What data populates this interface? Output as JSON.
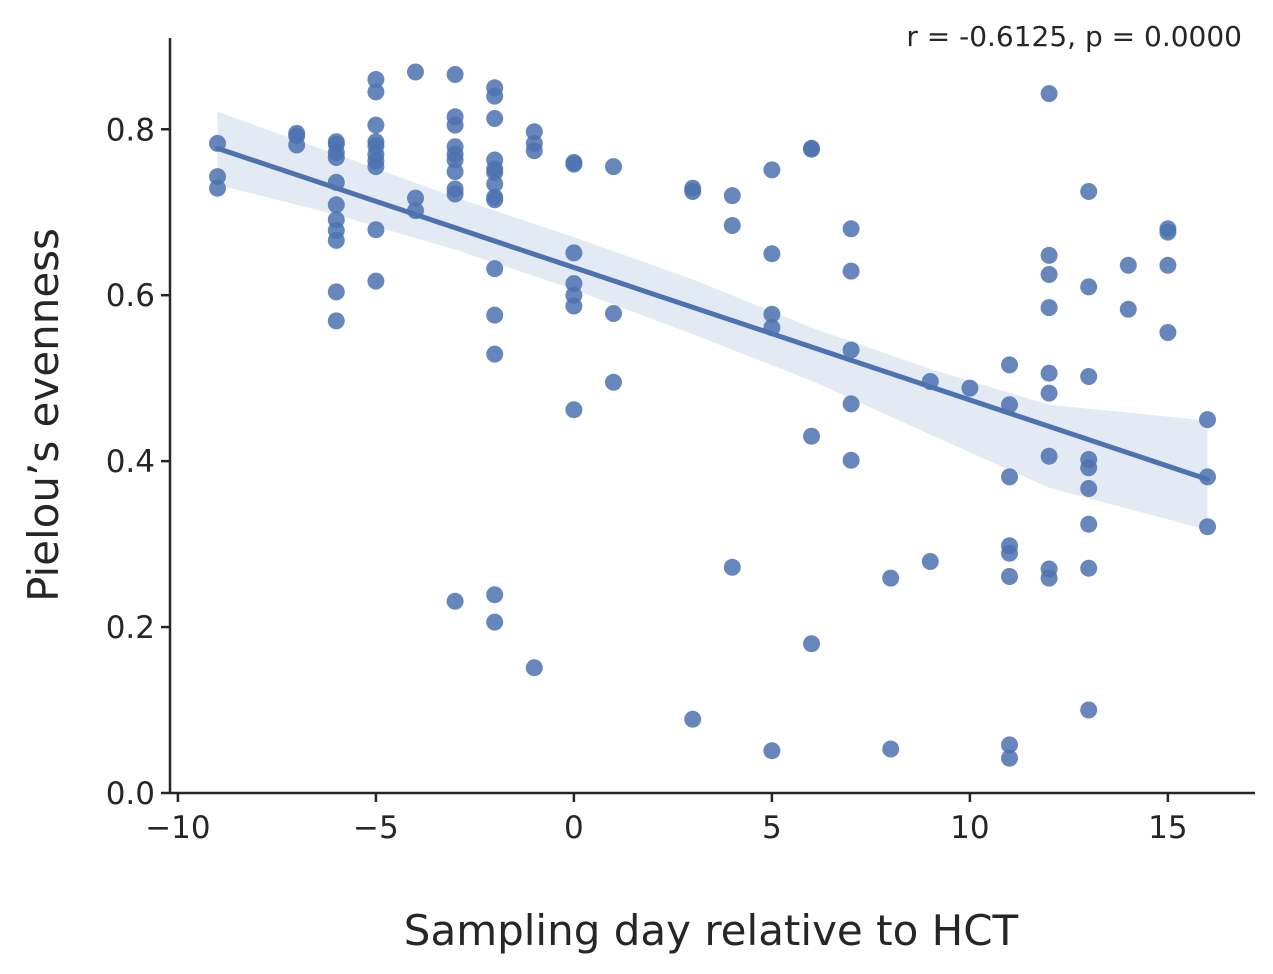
{
  "chart_data": {
    "type": "scatter",
    "xlabel": "Sampling day relative to HCT",
    "ylabel": "Pielou’s evenness",
    "annotation": "r = -0.6125, p = 0.0000",
    "xlim": [
      -10.2,
      17.2
    ],
    "ylim": [
      0.0,
      0.91
    ],
    "xticks": [
      -10,
      -5,
      0,
      5,
      10,
      15
    ],
    "xtick_labels": [
      "−10",
      "−5",
      "0",
      "5",
      "10",
      "15"
    ],
    "yticks": [
      0.0,
      0.2,
      0.4,
      0.6,
      0.8
    ],
    "ytick_labels": [
      "0.0",
      "0.2",
      "0.4",
      "0.6",
      "0.8"
    ],
    "grid": false,
    "colors": {
      "points": "#4c72b0",
      "line": "#4c72b0",
      "band": "#4c72b0",
      "axis": "#262626"
    },
    "regression": {
      "x": [
        -9,
        16
      ],
      "y": [
        0.777,
        0.378
      ]
    },
    "confidence_band": {
      "x": [
        -9,
        -6,
        -3,
        0,
        3,
        6,
        9,
        12,
        16
      ],
      "lower": [
        0.733,
        0.697,
        0.655,
        0.607,
        0.553,
        0.497,
        0.432,
        0.368,
        0.317
      ],
      "upper": [
        0.821,
        0.77,
        0.718,
        0.67,
        0.619,
        0.561,
        0.511,
        0.468,
        0.449
      ]
    },
    "points": [
      {
        "x": -9,
        "y": 0.783
      },
      {
        "x": -9,
        "y": 0.743
      },
      {
        "x": -9,
        "y": 0.729
      },
      {
        "x": -7,
        "y": 0.795
      },
      {
        "x": -7,
        "y": 0.792
      },
      {
        "x": -7,
        "y": 0.781
      },
      {
        "x": -6,
        "y": 0.785
      },
      {
        "x": -6,
        "y": 0.782
      },
      {
        "x": -6,
        "y": 0.772
      },
      {
        "x": -6,
        "y": 0.766
      },
      {
        "x": -6,
        "y": 0.736
      },
      {
        "x": -6,
        "y": 0.709
      },
      {
        "x": -6,
        "y": 0.691
      },
      {
        "x": -6,
        "y": 0.678
      },
      {
        "x": -6,
        "y": 0.666
      },
      {
        "x": -6,
        "y": 0.604
      },
      {
        "x": -6,
        "y": 0.569
      },
      {
        "x": -5,
        "y": 0.86
      },
      {
        "x": -5,
        "y": 0.845
      },
      {
        "x": -5,
        "y": 0.805
      },
      {
        "x": -5,
        "y": 0.785
      },
      {
        "x": -5,
        "y": 0.78
      },
      {
        "x": -5,
        "y": 0.77
      },
      {
        "x": -5,
        "y": 0.762
      },
      {
        "x": -5,
        "y": 0.755
      },
      {
        "x": -5,
        "y": 0.679
      },
      {
        "x": -5,
        "y": 0.617
      },
      {
        "x": -4,
        "y": 0.869
      },
      {
        "x": -4,
        "y": 0.717
      },
      {
        "x": -4,
        "y": 0.702
      },
      {
        "x": -3,
        "y": 0.866
      },
      {
        "x": -3,
        "y": 0.815
      },
      {
        "x": -3,
        "y": 0.805
      },
      {
        "x": -3,
        "y": 0.779
      },
      {
        "x": -3,
        "y": 0.77
      },
      {
        "x": -3,
        "y": 0.763
      },
      {
        "x": -3,
        "y": 0.749
      },
      {
        "x": -3,
        "y": 0.728
      },
      {
        "x": -3,
        "y": 0.722
      },
      {
        "x": -3,
        "y": 0.231
      },
      {
        "x": -2,
        "y": 0.85
      },
      {
        "x": -2,
        "y": 0.84
      },
      {
        "x": -2,
        "y": 0.813
      },
      {
        "x": -2,
        "y": 0.763
      },
      {
        "x": -2,
        "y": 0.752
      },
      {
        "x": -2,
        "y": 0.748
      },
      {
        "x": -2,
        "y": 0.734
      },
      {
        "x": -2,
        "y": 0.718
      },
      {
        "x": -2,
        "y": 0.715
      },
      {
        "x": -2,
        "y": 0.632
      },
      {
        "x": -2,
        "y": 0.576
      },
      {
        "x": -2,
        "y": 0.529
      },
      {
        "x": -2,
        "y": 0.239
      },
      {
        "x": -2,
        "y": 0.206
      },
      {
        "x": -1,
        "y": 0.797
      },
      {
        "x": -1,
        "y": 0.783
      },
      {
        "x": -1,
        "y": 0.774
      },
      {
        "x": -1,
        "y": 0.151
      },
      {
        "x": 0,
        "y": 0.76
      },
      {
        "x": 0,
        "y": 0.758
      },
      {
        "x": 0,
        "y": 0.651
      },
      {
        "x": 0,
        "y": 0.614
      },
      {
        "x": 0,
        "y": 0.6
      },
      {
        "x": 0,
        "y": 0.587
      },
      {
        "x": 0,
        "y": 0.462
      },
      {
        "x": 1,
        "y": 0.755
      },
      {
        "x": 1,
        "y": 0.578
      },
      {
        "x": 1,
        "y": 0.495
      },
      {
        "x": 3,
        "y": 0.729
      },
      {
        "x": 3,
        "y": 0.725
      },
      {
        "x": 3,
        "y": 0.089
      },
      {
        "x": 4,
        "y": 0.72
      },
      {
        "x": 4,
        "y": 0.684
      },
      {
        "x": 4,
        "y": 0.272
      },
      {
        "x": 5,
        "y": 0.751
      },
      {
        "x": 5,
        "y": 0.65
      },
      {
        "x": 5,
        "y": 0.577
      },
      {
        "x": 5,
        "y": 0.561
      },
      {
        "x": 5,
        "y": 0.051
      },
      {
        "x": 6,
        "y": 0.777
      },
      {
        "x": 6,
        "y": 0.776
      },
      {
        "x": 6,
        "y": 0.43
      },
      {
        "x": 6,
        "y": 0.18
      },
      {
        "x": 7,
        "y": 0.68
      },
      {
        "x": 7,
        "y": 0.629
      },
      {
        "x": 7,
        "y": 0.534
      },
      {
        "x": 7,
        "y": 0.469
      },
      {
        "x": 7,
        "y": 0.401
      },
      {
        "x": 8,
        "y": 0.259
      },
      {
        "x": 8,
        "y": 0.053
      },
      {
        "x": 9,
        "y": 0.496
      },
      {
        "x": 9,
        "y": 0.279
      },
      {
        "x": 10,
        "y": 0.488
      },
      {
        "x": 11,
        "y": 0.516
      },
      {
        "x": 11,
        "y": 0.468
      },
      {
        "x": 11,
        "y": 0.381
      },
      {
        "x": 11,
        "y": 0.298
      },
      {
        "x": 11,
        "y": 0.289
      },
      {
        "x": 11,
        "y": 0.261
      },
      {
        "x": 11,
        "y": 0.058
      },
      {
        "x": 11,
        "y": 0.042
      },
      {
        "x": 12,
        "y": 0.843
      },
      {
        "x": 12,
        "y": 0.648
      },
      {
        "x": 12,
        "y": 0.625
      },
      {
        "x": 12,
        "y": 0.585
      },
      {
        "x": 12,
        "y": 0.506
      },
      {
        "x": 12,
        "y": 0.482
      },
      {
        "x": 12,
        "y": 0.406
      },
      {
        "x": 12,
        "y": 0.27
      },
      {
        "x": 12,
        "y": 0.259
      },
      {
        "x": 13,
        "y": 0.725
      },
      {
        "x": 13,
        "y": 0.61
      },
      {
        "x": 13,
        "y": 0.502
      },
      {
        "x": 13,
        "y": 0.402
      },
      {
        "x": 13,
        "y": 0.392
      },
      {
        "x": 13,
        "y": 0.367
      },
      {
        "x": 13,
        "y": 0.324
      },
      {
        "x": 13,
        "y": 0.271
      },
      {
        "x": 13,
        "y": 0.1
      },
      {
        "x": 14,
        "y": 0.636
      },
      {
        "x": 14,
        "y": 0.583
      },
      {
        "x": 15,
        "y": 0.68
      },
      {
        "x": 15,
        "y": 0.676
      },
      {
        "x": 15,
        "y": 0.636
      },
      {
        "x": 15,
        "y": 0.555
      },
      {
        "x": 16,
        "y": 0.45
      },
      {
        "x": 16,
        "y": 0.381
      },
      {
        "x": 16,
        "y": 0.321
      }
    ]
  }
}
